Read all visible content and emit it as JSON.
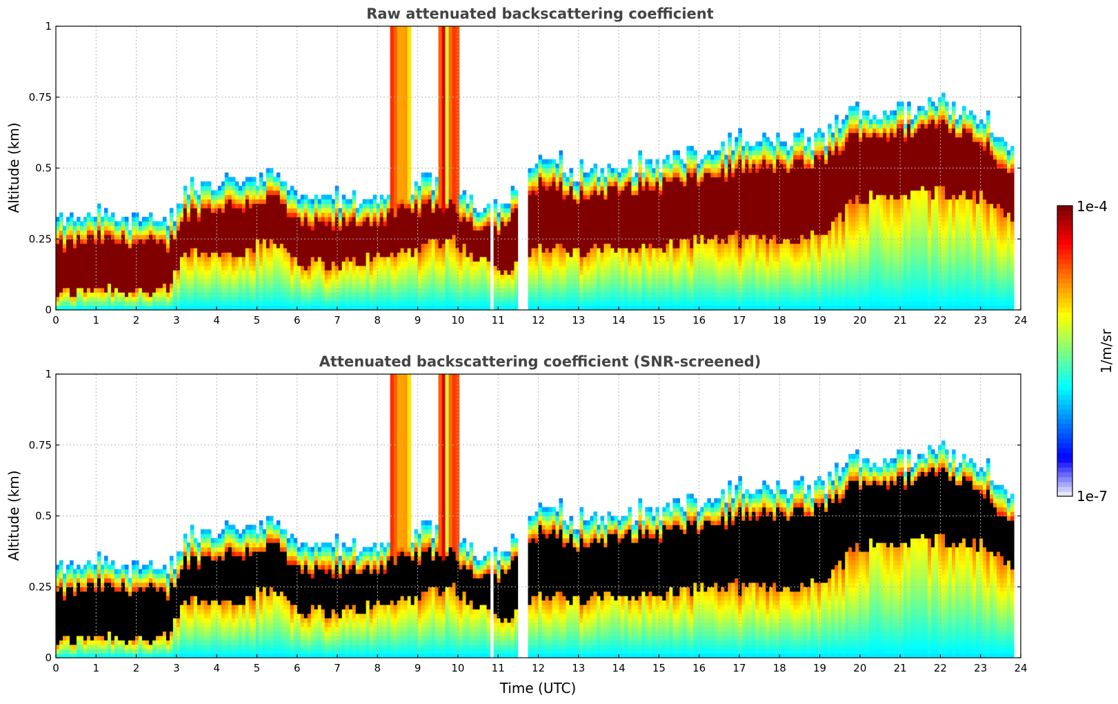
{
  "figure": {
    "colorbar": {
      "label": "1/m/sr",
      "min_label": "1e-7",
      "max_label": "1e-4",
      "log_min": -7,
      "log_max": -4,
      "colormap": [
        "#e6e6fa",
        "#0000ff",
        "#0080ff",
        "#00ffff",
        "#80ff80",
        "#ffff00",
        "#ff8000",
        "#ff0000",
        "#800000"
      ]
    }
  },
  "chart_data": [
    {
      "type": "heatmap",
      "title": "Raw attenuated backscattering coefficient",
      "xlabel": "",
      "ylabel": "Altitude (km)",
      "xlim": [
        0,
        24
      ],
      "ylim": [
        0,
        1
      ],
      "x_ticks": [
        "0",
        "1",
        "2",
        "3",
        "4",
        "5",
        "6",
        "7",
        "8",
        "9",
        "10",
        "11",
        "12",
        "13",
        "14",
        "15",
        "16",
        "17",
        "18",
        "19",
        "20",
        "21",
        "22",
        "23",
        "24"
      ],
      "y_ticks": [
        "0",
        "0.25",
        "0.5",
        "0.75",
        "1"
      ],
      "grid": true,
      "screened": false,
      "data_end_hour": 23.8,
      "gaps_hours": [
        10.85,
        11.55,
        11.65
      ],
      "layer_profile": {
        "hours": [
          0,
          1,
          2,
          2.8,
          3.2,
          4,
          5,
          5.5,
          6,
          7,
          8,
          9,
          9.8,
          10.5,
          11,
          11.5,
          12,
          13,
          14,
          15,
          16,
          17,
          18,
          19,
          20,
          21,
          22,
          23,
          23.8
        ],
        "core_top_km": [
          0.22,
          0.25,
          0.24,
          0.22,
          0.34,
          0.36,
          0.38,
          0.4,
          0.3,
          0.3,
          0.32,
          0.36,
          0.36,
          0.3,
          0.28,
          0.34,
          0.45,
          0.4,
          0.42,
          0.44,
          0.46,
          0.5,
          0.5,
          0.52,
          0.62,
          0.62,
          0.66,
          0.6,
          0.48
        ],
        "core_bottom_km": [
          0.05,
          0.08,
          0.07,
          0.06,
          0.2,
          0.2,
          0.22,
          0.25,
          0.17,
          0.16,
          0.18,
          0.22,
          0.26,
          0.18,
          0.14,
          0.16,
          0.22,
          0.2,
          0.22,
          0.22,
          0.25,
          0.25,
          0.25,
          0.26,
          0.4,
          0.4,
          0.42,
          0.4,
          0.33
        ]
      }
    },
    {
      "type": "heatmap",
      "title": "Attenuated backscattering coefficient (SNR-screened)",
      "xlabel": "Time (UTC)",
      "ylabel": "Altitude (km)",
      "xlim": [
        0,
        24
      ],
      "ylim": [
        0,
        1
      ],
      "x_ticks": [
        "0",
        "1",
        "2",
        "3",
        "4",
        "5",
        "6",
        "7",
        "8",
        "9",
        "10",
        "11",
        "12",
        "13",
        "14",
        "15",
        "16",
        "17",
        "18",
        "19",
        "20",
        "21",
        "22",
        "23",
        "24"
      ],
      "y_ticks": [
        "0",
        "0.25",
        "0.5",
        "0.75",
        "1"
      ],
      "grid": true,
      "screened": true,
      "screen_color": "#000000",
      "data_end_hour": 23.8,
      "gaps_hours": [
        10.85,
        11.55,
        11.65
      ]
    }
  ]
}
